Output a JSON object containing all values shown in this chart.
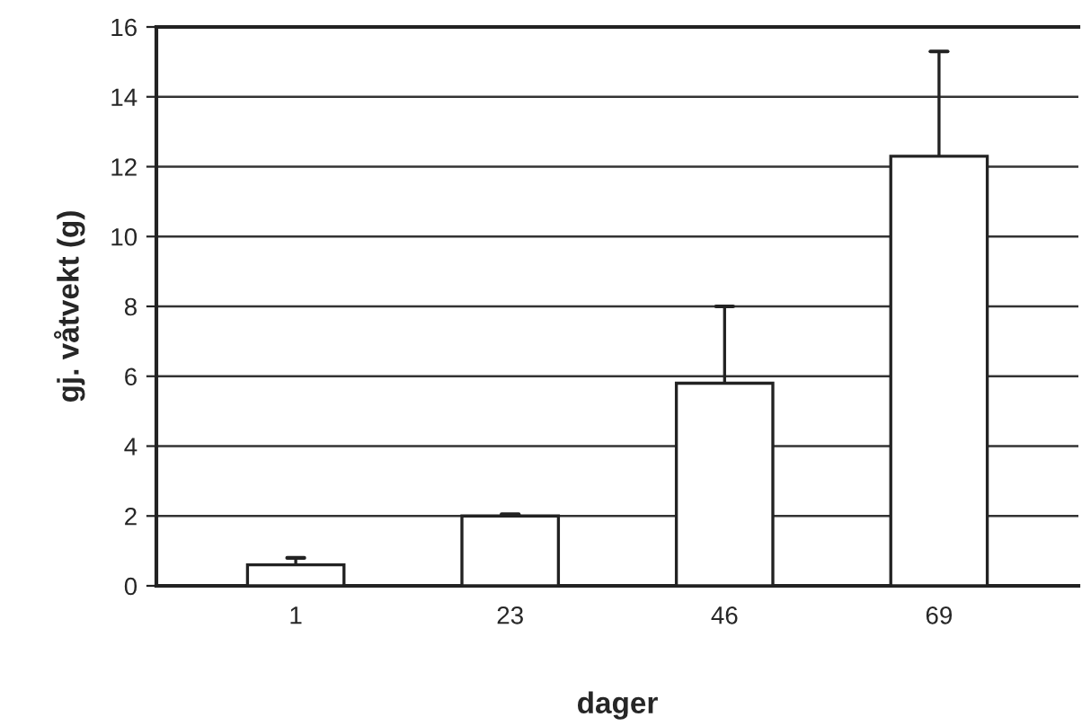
{
  "chart_data": {
    "type": "bar",
    "xlabel": "dager",
    "ylabel": "gj. våtvekt (g)",
    "categories": [
      "1",
      "23",
      "46",
      "69"
    ],
    "values": [
      0.6,
      2.0,
      5.8,
      12.3
    ],
    "errors": [
      [
        0.6,
        0.8
      ],
      [
        2.0,
        2.05
      ],
      [
        5.8,
        8.0
      ],
      [
        12.3,
        15.3
      ]
    ],
    "color": "#ffffff",
    "ylim": [
      0,
      16
    ],
    "yticks": [
      0,
      2,
      4,
      6,
      8,
      10,
      12,
      14,
      16
    ],
    "grid": "y",
    "legend": false
  }
}
